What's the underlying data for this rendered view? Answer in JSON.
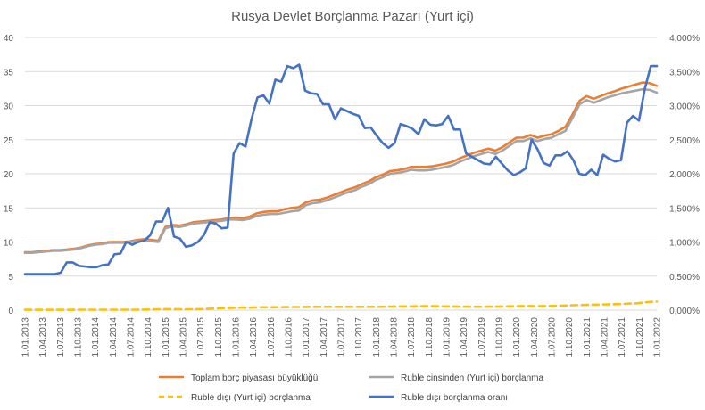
{
  "chart_data": {
    "type": "line",
    "title": "Rusya Devlet Borçlanma Pazarı (Yurt içi)",
    "x_tick_labels": [
      "1.01.2013",
      "1.04.2013",
      "1.07.2013",
      "1.10.2013",
      "1.01.2014",
      "1.04.2014",
      "1.07.2014",
      "1.10.2014",
      "1.01.2015",
      "1.04.2015",
      "1.07.2015",
      "1.10.2015",
      "1.01.2016",
      "1.04.2016",
      "1.07.2016",
      "1.10.2016",
      "1.01.2017",
      "1.04.2017",
      "1.07.2017",
      "1.10.2017",
      "1.01.2018",
      "1.04.2018",
      "1.07.2018",
      "1.10.2018",
      "1.01.2019",
      "1.04.2019",
      "1.07.2019",
      "1.10.2019",
      "1.01.2020",
      "1.04.2020",
      "1.07.2020",
      "1.10.2020",
      "1.01.2021",
      "1.04.2021",
      "1.07.2021",
      "1.10.2021",
      "1.01.2022"
    ],
    "x_range": [
      "1.01.2013",
      "1.01.2022"
    ],
    "y_left": {
      "min": 0,
      "max": 40,
      "step": 5,
      "tick_labels": [
        "0",
        "5",
        "10",
        "15",
        "20",
        "25",
        "30",
        "35",
        "40"
      ]
    },
    "y_right": {
      "min": 0,
      "max": 4,
      "step": 0.5,
      "tick_labels": [
        "0,000%",
        "0,500%",
        "1,000%",
        "1,500%",
        "2,000%",
        "2,500%",
        "3,000%",
        "3,500%",
        "4,000%"
      ]
    },
    "grid": true,
    "legend_position": "bottom",
    "series": [
      {
        "name": "Toplam borç piyasası büyüklüğü",
        "color": "#ED7D31",
        "axis": "left",
        "dash": false,
        "values": [
          8.5,
          8.5,
          8.6,
          8.7,
          8.8,
          8.8,
          8.9,
          9.0,
          9.2,
          9.5,
          9.7,
          9.8,
          10.0,
          10.0,
          10.0,
          10.1,
          10.3,
          10.4,
          10.3,
          10.2,
          12.2,
          12.5,
          12.4,
          12.6,
          12.9,
          13.0,
          13.1,
          13.2,
          13.3,
          13.5,
          13.6,
          13.5,
          13.7,
          14.2,
          14.4,
          14.5,
          14.5,
          14.8,
          15.0,
          15.1,
          15.8,
          16.1,
          16.2,
          16.5,
          16.9,
          17.3,
          17.7,
          18.0,
          18.5,
          18.9,
          19.5,
          19.9,
          20.4,
          20.5,
          20.7,
          21.0,
          21.0,
          21.0,
          21.1,
          21.3,
          21.5,
          21.8,
          22.3,
          22.7,
          23.1,
          23.4,
          23.7,
          23.4,
          23.9,
          24.6,
          25.3,
          25.3,
          25.7,
          25.3,
          25.6,
          25.8,
          26.3,
          26.9,
          28.7,
          30.7,
          31.4,
          31.0,
          31.4,
          31.8,
          32.1,
          32.5,
          32.8,
          33.1,
          33.4,
          33.3,
          32.9
        ]
      },
      {
        "name": "Ruble cinsinden (Yurt içi) borçlanma",
        "color": "#A5A5A5",
        "axis": "left",
        "dash": false,
        "values": [
          8.4,
          8.4,
          8.5,
          8.6,
          8.7,
          8.7,
          8.8,
          8.9,
          9.1,
          9.4,
          9.6,
          9.7,
          9.9,
          9.9,
          9.9,
          10.0,
          10.1,
          10.2,
          10.1,
          10.0,
          12.0,
          12.3,
          12.2,
          12.4,
          12.7,
          12.8,
          12.9,
          13.0,
          13.1,
          13.3,
          13.3,
          13.2,
          13.4,
          13.8,
          14.0,
          14.1,
          14.1,
          14.3,
          14.5,
          14.6,
          15.4,
          15.7,
          15.8,
          16.1,
          16.5,
          16.9,
          17.3,
          17.6,
          18.1,
          18.5,
          19.1,
          19.5,
          20.0,
          20.1,
          20.3,
          20.6,
          20.5,
          20.5,
          20.6,
          20.8,
          21.0,
          21.3,
          21.8,
          22.2,
          22.6,
          22.9,
          23.2,
          22.9,
          23.4,
          24.1,
          24.8,
          24.8,
          25.2,
          24.8,
          25.1,
          25.3,
          25.8,
          26.3,
          28.2,
          30.2,
          30.8,
          30.4,
          30.8,
          31.2,
          31.5,
          31.8,
          32.0,
          32.2,
          32.4,
          32.3,
          31.9
        ]
      },
      {
        "name": "Ruble dışı (Yurt içi) borçlanma",
        "color": "#FFC000",
        "axis": "left",
        "dash": true,
        "values": [
          0.05,
          0.05,
          0.05,
          0.05,
          0.05,
          0.05,
          0.05,
          0.05,
          0.06,
          0.06,
          0.06,
          0.06,
          0.06,
          0.06,
          0.06,
          0.06,
          0.07,
          0.08,
          0.1,
          0.12,
          0.15,
          0.14,
          0.13,
          0.13,
          0.13,
          0.15,
          0.2,
          0.25,
          0.3,
          0.32,
          0.35,
          0.36,
          0.37,
          0.4,
          0.42,
          0.42,
          0.43,
          0.45,
          0.46,
          0.46,
          0.47,
          0.48,
          0.48,
          0.48,
          0.48,
          0.48,
          0.48,
          0.48,
          0.48,
          0.48,
          0.48,
          0.5,
          0.52,
          0.53,
          0.55,
          0.55,
          0.56,
          0.57,
          0.57,
          0.56,
          0.55,
          0.53,
          0.52,
          0.51,
          0.5,
          0.5,
          0.51,
          0.52,
          0.54,
          0.56,
          0.58,
          0.6,
          0.6,
          0.58,
          0.6,
          0.62,
          0.65,
          0.68,
          0.72,
          0.75,
          0.78,
          0.8,
          0.82,
          0.85,
          0.88,
          0.9,
          0.95,
          1.0,
          1.1,
          1.2,
          1.25
        ]
      },
      {
        "name": "Ruble dışı borçlanma oranı",
        "color": "#4472C4",
        "axis": "right",
        "dash": false,
        "values": [
          0.53,
          0.53,
          0.53,
          0.53,
          0.53,
          0.53,
          0.55,
          0.7,
          0.7,
          0.65,
          0.64,
          0.63,
          0.63,
          0.66,
          0.67,
          0.82,
          0.83,
          1.0,
          0.96,
          1.0,
          1.02,
          1.1,
          1.3,
          1.3,
          1.5,
          1.08,
          1.05,
          0.93,
          0.95,
          1.0,
          1.1,
          1.29,
          1.27,
          1.2,
          1.21,
          2.3,
          2.45,
          2.4,
          2.8,
          3.12,
          3.15,
          3.03,
          3.38,
          3.35,
          3.58,
          3.55,
          3.6,
          3.22,
          3.18,
          3.17,
          3.02,
          3.02,
          2.8,
          2.96,
          2.92,
          2.88,
          2.85,
          2.67,
          2.68,
          2.56,
          2.45,
          2.38,
          2.45,
          2.73,
          2.7,
          2.66,
          2.58,
          2.8,
          2.72,
          2.71,
          2.73,
          2.85,
          2.65,
          2.65,
          2.3,
          2.25,
          2.2,
          2.15,
          2.14,
          2.25,
          2.15,
          2.05,
          1.98,
          2.02,
          2.08,
          2.5,
          2.36,
          2.16,
          2.12,
          2.27,
          2.27,
          2.33,
          2.2,
          2.0,
          1.98,
          2.06,
          1.98,
          2.28,
          2.22,
          2.18,
          2.2,
          2.75,
          2.85,
          2.78,
          3.25,
          3.58,
          3.58
        ]
      }
    ]
  }
}
